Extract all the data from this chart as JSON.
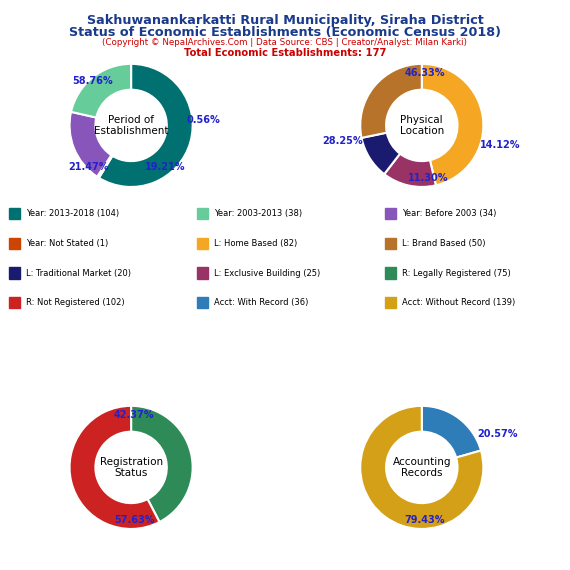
{
  "title_line1": "Sakhuwanankarkatti Rural Municipality, Siraha District",
  "title_line2": "Status of Economic Establishments (Economic Census 2018)",
  "subtitle": "(Copyright © NepalArchives.Com | Data Source: CBS | Creator/Analyst: Milan Karki)",
  "total_line": "Total Economic Establishments: 177",
  "title_color": "#1a3a8c",
  "subtitle_color": "#cc0000",
  "pct_color": "#2222cc",
  "pie1_label": "Period of\nEstablishment",
  "pie1_values": [
    58.76,
    0.56,
    19.21,
    21.47
  ],
  "pie1_colors": [
    "#007070",
    "#cc4400",
    "#8855bb",
    "#66cc99"
  ],
  "pie1_pcts": [
    "58.76%",
    "0.56%",
    "19.21%",
    "21.47%"
  ],
  "pie2_label": "Physical\nLocation",
  "pie2_values": [
    46.33,
    14.12,
    11.3,
    28.25
  ],
  "pie2_colors": [
    "#f5a623",
    "#993366",
    "#1a1a6e",
    "#b8732a"
  ],
  "pie2_pcts": [
    "46.33%",
    "14.12%",
    "11.30%",
    "28.25%"
  ],
  "pie3_label": "Registration\nStatus",
  "pie3_values": [
    42.37,
    57.63
  ],
  "pie3_colors": [
    "#2e8b57",
    "#cc2222"
  ],
  "pie3_pcts": [
    "42.37%",
    "57.63%"
  ],
  "pie4_label": "Accounting\nRecords",
  "pie4_values": [
    20.57,
    79.43
  ],
  "pie4_colors": [
    "#2e7cb8",
    "#d4a017"
  ],
  "pie4_pcts": [
    "20.57%",
    "79.43%"
  ],
  "legend_items": [
    {
      "label": "Year: 2013-2018 (104)",
      "color": "#007070"
    },
    {
      "label": "Year: 2003-2013 (38)",
      "color": "#66cc99"
    },
    {
      "label": "Year: Before 2003 (34)",
      "color": "#8855bb"
    },
    {
      "label": "Year: Not Stated (1)",
      "color": "#cc4400"
    },
    {
      "label": "L: Home Based (82)",
      "color": "#f5a623"
    },
    {
      "label": "L: Brand Based (50)",
      "color": "#b8732a"
    },
    {
      "label": "L: Traditional Market (20)",
      "color": "#1a1a6e"
    },
    {
      "label": "L: Exclusive Building (25)",
      "color": "#993366"
    },
    {
      "label": "R: Legally Registered (75)",
      "color": "#2e8b57"
    },
    {
      "label": "R: Not Registered (102)",
      "color": "#cc2222"
    },
    {
      "label": "Acct: With Record (36)",
      "color": "#2e7cb8"
    },
    {
      "label": "Acct: Without Record (139)",
      "color": "#d4a017"
    }
  ]
}
